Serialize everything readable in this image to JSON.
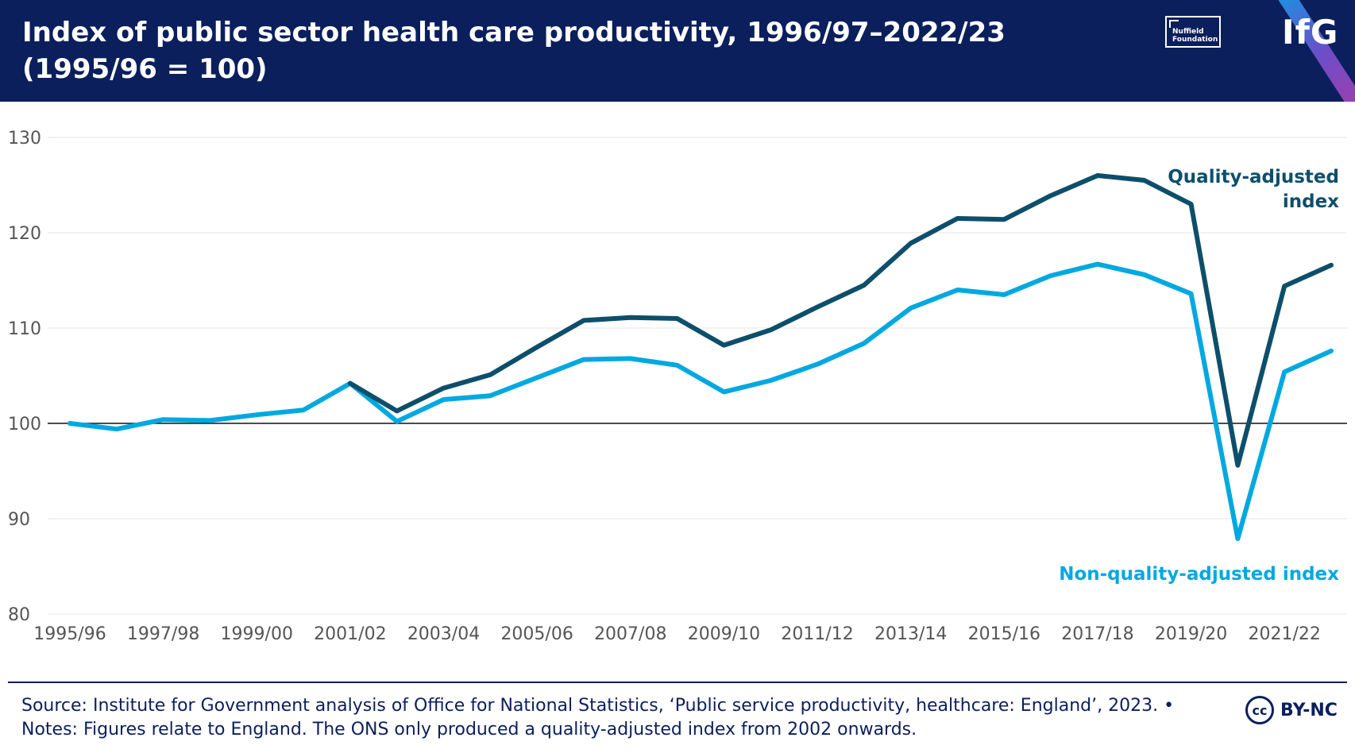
{
  "header": {
    "title": "Index of public sector health care productivity, 1996/97–2022/23 (1995/96 = 100)",
    "partner_logo_line1": "Nuffield",
    "partner_logo_line2": "Foundation",
    "brand_logo": "IfG"
  },
  "footer": {
    "source_line": "Source: Institute for Government analysis of Office for National Statistics, ‘Public service productivity, healthcare: England’, 2023. •",
    "notes_line": "Notes: Figures relate to England. The ONS only produced a quality-adjusted index from 2002 onwards.",
    "license_icon": "cc",
    "license_label": "BY-NC"
  },
  "colors": {
    "header_bg": "#0b1f5c",
    "quality_adjusted": "#0d4f6b",
    "non_quality_adjusted": "#00a8e0"
  },
  "chart_data": {
    "type": "line",
    "title": "Index of public sector health care productivity, 1996/97–2022/23 (1995/96 = 100)",
    "xlabel": "",
    "ylabel": "",
    "ylim": [
      80,
      130
    ],
    "yticks": [
      "130",
      "120",
      "110",
      "100",
      "90",
      "80"
    ],
    "baseline": 100,
    "grid": true,
    "categories": [
      "1995/96",
      "1996/97",
      "1997/98",
      "1998/99",
      "1999/00",
      "2000/01",
      "2001/02",
      "2002/03",
      "2003/04",
      "2004/05",
      "2005/06",
      "2006/07",
      "2007/08",
      "2008/09",
      "2009/10",
      "2010/11",
      "2011/12",
      "2012/13",
      "2013/14",
      "2014/15",
      "2015/16",
      "2016/17",
      "2017/18",
      "2018/19",
      "2019/20",
      "2020/21",
      "2021/22",
      "2022/23"
    ],
    "xticks": [
      "1995/96",
      "1997/98",
      "1999/00",
      "2001/02",
      "2003/04",
      "2005/06",
      "2007/08",
      "2009/10",
      "2011/12",
      "2013/14",
      "2015/16",
      "2017/18",
      "2019/20",
      "2021/22"
    ],
    "series": [
      {
        "name": "Non-quality-adjusted index",
        "label_lines": [
          "Non-quality-adjusted index"
        ],
        "values": [
          100,
          99.4,
          100.4,
          100.3,
          100.9,
          101.4,
          104.2,
          100.2,
          102.5,
          102.9,
          104.8,
          106.7,
          106.8,
          106.1,
          103.3,
          104.5,
          106.2,
          108.4,
          112.1,
          114.0,
          113.5,
          115.5,
          116.7,
          115.6,
          113.6,
          87.9,
          105.4,
          107.6
        ]
      },
      {
        "name": "Quality-adjusted index",
        "label_lines": [
          "Quality-adjusted",
          "index"
        ],
        "values": [
          null,
          null,
          null,
          null,
          null,
          null,
          104.2,
          101.3,
          103.7,
          105.1,
          108.0,
          110.8,
          111.1,
          111.0,
          108.2,
          109.8,
          112.2,
          114.5,
          118.9,
          121.5,
          121.4,
          123.9,
          126.0,
          125.5,
          123.0,
          95.6,
          114.4,
          116.6
        ]
      }
    ]
  }
}
